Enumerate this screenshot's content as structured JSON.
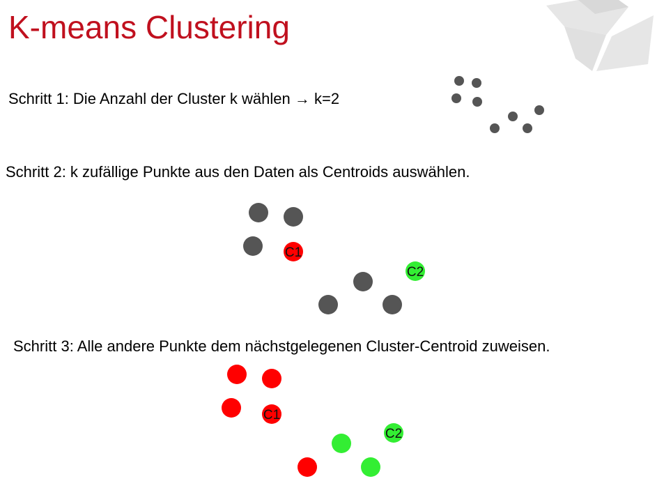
{
  "title": "K-means Clustering",
  "steps": [
    {
      "text": "Schritt 1: Die Anzahl der Cluster k wählen → k=2"
    },
    {
      "text": "Schritt 2: k zufällige Punkte aus den Daten als Centroids auswählen."
    },
    {
      "text": "Schritt 3: Alle andere Punkte dem nächstgelegenen Cluster-Centroid zuweisen."
    }
  ],
  "centroid_labels": {
    "c1": "C1",
    "c2": "C2"
  },
  "colors": {
    "title": "#c0101e",
    "point": "#555555",
    "cluster1": "#ff0000",
    "cluster2": "#33ee33",
    "logo": "#e6e6e6"
  }
}
